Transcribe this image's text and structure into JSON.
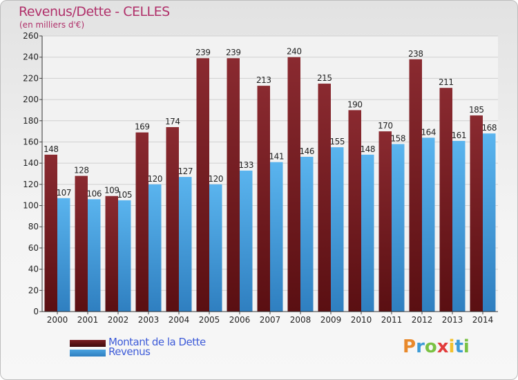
{
  "title": "Revenus/Dette - CELLES",
  "subtitle": "(en milliers d'€)",
  "colors": {
    "debt": "#7a1f24",
    "revenue": "#4aa3e0",
    "title": "#b0306a",
    "legend_text": "#3d5bd8"
  },
  "legend": {
    "debt_label": "Montant de la Dette",
    "revenue_label": "Revenus"
  },
  "logo": {
    "letters": [
      "P",
      "r",
      "o",
      "x",
      "i",
      "t",
      "i"
    ],
    "colors": [
      "#e8892b",
      "#3d9bd6",
      "#7ac143",
      "#e23b3b",
      "#f2c12e",
      "#3d9bd6",
      "#7ac143"
    ]
  },
  "chart_data": {
    "type": "bar",
    "title": "Revenus/Dette - CELLES",
    "subtitle": "(en milliers d'€)",
    "xlabel": "",
    "ylabel": "",
    "ylim": [
      0,
      260
    ],
    "yticks": [
      0,
      20,
      40,
      60,
      80,
      100,
      120,
      140,
      160,
      180,
      200,
      220,
      240,
      260
    ],
    "grid": true,
    "legend_position": "bottom-left",
    "categories": [
      "2000",
      "2001",
      "2002",
      "2003",
      "2004",
      "2005",
      "2006",
      "2007",
      "2008",
      "2009",
      "2010",
      "2011",
      "2012",
      "2013",
      "2014"
    ],
    "series": [
      {
        "name": "Montant de la Dette",
        "values": [
          148,
          128,
          109,
          169,
          174,
          239,
          239,
          213,
          240,
          215,
          190,
          170,
          238,
          211,
          185
        ]
      },
      {
        "name": "Revenus",
        "values": [
          107,
          106,
          105,
          120,
          127,
          120,
          133,
          141,
          146,
          155,
          148,
          158,
          164,
          161,
          168
        ]
      }
    ]
  }
}
